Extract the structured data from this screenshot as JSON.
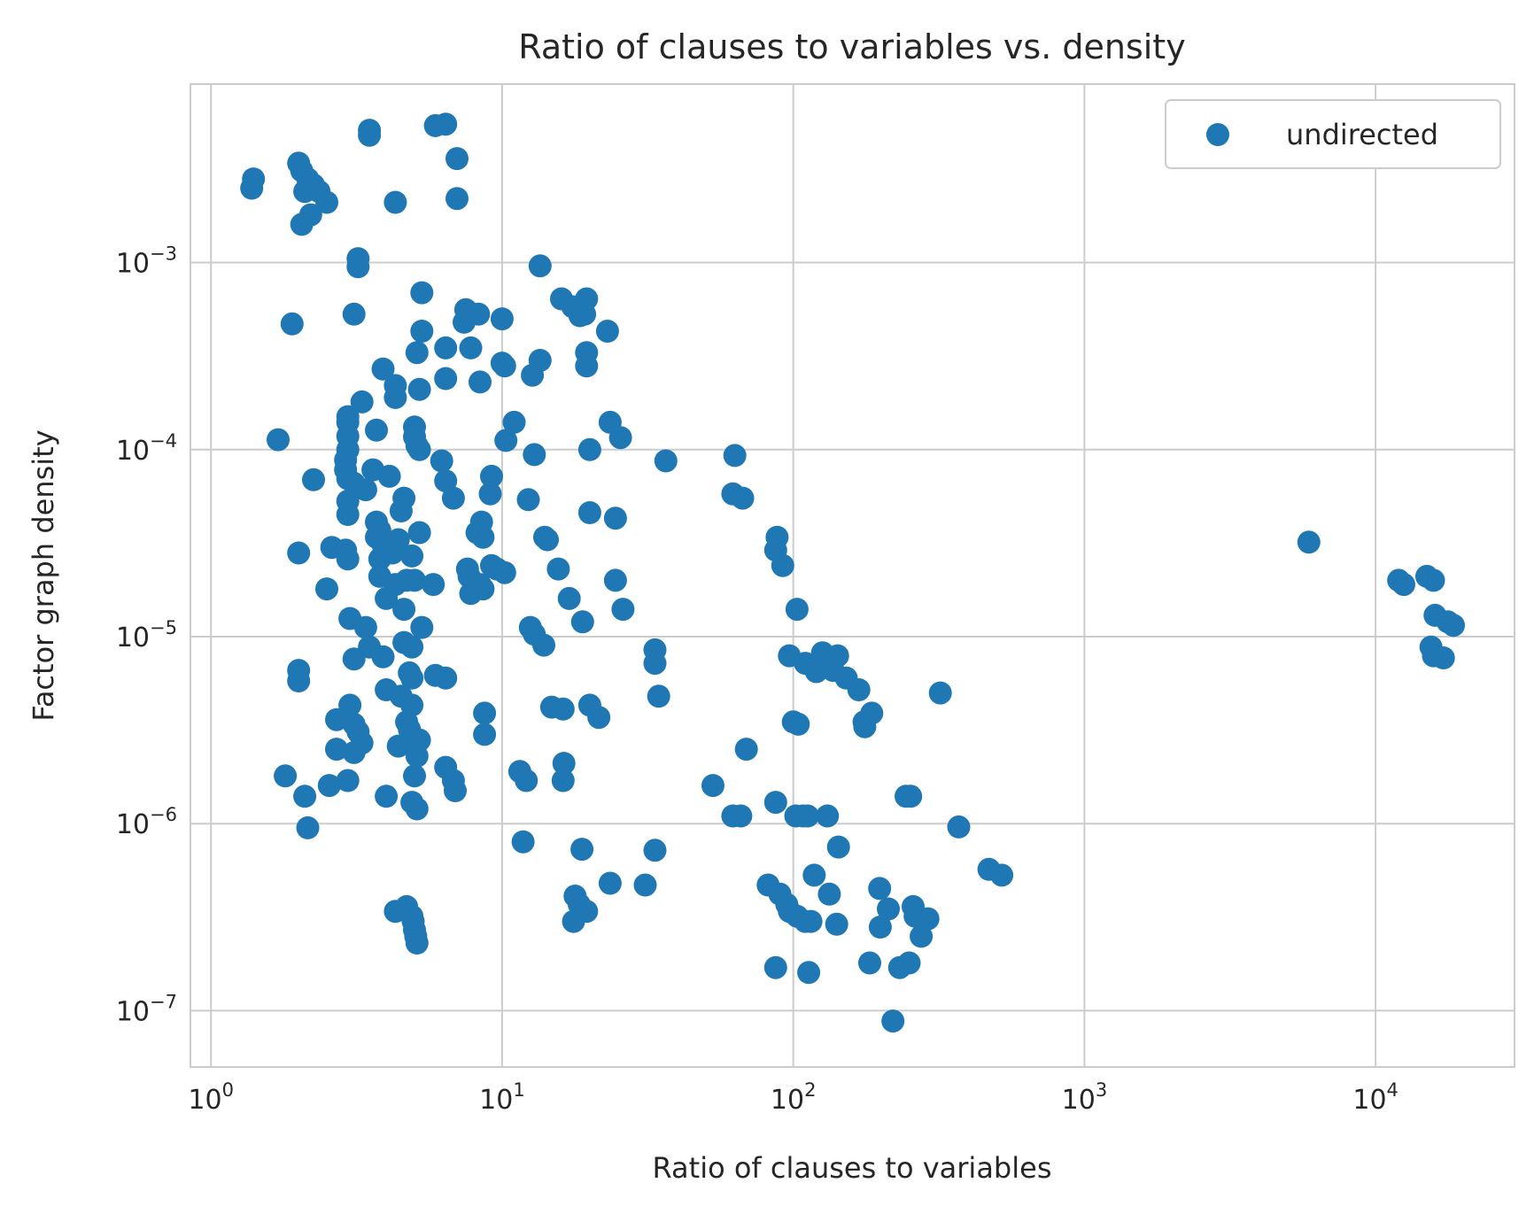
{
  "chart_data": {
    "type": "scatter",
    "title": "Ratio of clauses to variables vs. density",
    "xlabel": "Ratio of clauses to variables",
    "ylabel": "Factor graph density",
    "xscale": "log",
    "yscale": "log",
    "xlim": [
      0.85,
      30000
    ],
    "ylim": [
      5e-08,
      0.009
    ],
    "grid": true,
    "legend_position": "top-right",
    "marker_color": "#1f77b4",
    "x_ticks": [
      {
        "value": 1,
        "base": "10",
        "exp": "0"
      },
      {
        "value": 10,
        "base": "10",
        "exp": "1"
      },
      {
        "value": 100,
        "base": "10",
        "exp": "2"
      },
      {
        "value": 1000,
        "base": "10",
        "exp": "3"
      },
      {
        "value": 10000,
        "base": "10",
        "exp": "4"
      }
    ],
    "y_ticks": [
      {
        "value": 1e-07,
        "base": "10",
        "exp": "−7"
      },
      {
        "value": 1e-06,
        "base": "10",
        "exp": "−6"
      },
      {
        "value": 1e-05,
        "base": "10",
        "exp": "−5"
      },
      {
        "value": 0.0001,
        "base": "10",
        "exp": "−4"
      },
      {
        "value": 0.001,
        "base": "10",
        "exp": "−3"
      }
    ],
    "series": [
      {
        "name": "undirected",
        "points": [
          [
            1.4,
            0.0028
          ],
          [
            1.38,
            0.0025
          ],
          [
            2.0,
            0.0034
          ],
          [
            2.05,
            0.0031
          ],
          [
            2.15,
            0.0028
          ],
          [
            2.25,
            0.0026
          ],
          [
            2.1,
            0.0024
          ],
          [
            2.35,
            0.0024
          ],
          [
            2.5,
            0.0021
          ],
          [
            2.2,
            0.0018
          ],
          [
            2.05,
            0.0016
          ],
          [
            3.5,
            0.0051
          ],
          [
            3.5,
            0.0048
          ],
          [
            4.3,
            0.0021
          ],
          [
            5.9,
            0.0054
          ],
          [
            6.4,
            0.0055
          ],
          [
            7.0,
            0.0036
          ],
          [
            7.0,
            0.0022
          ],
          [
            3.2,
            0.00105
          ],
          [
            3.2,
            0.00095
          ],
          [
            13.5,
            0.00096
          ],
          [
            1.9,
            0.00047
          ],
          [
            3.1,
            0.00053
          ],
          [
            5.3,
            0.00069
          ],
          [
            5.3,
            0.00043
          ],
          [
            5.1,
            0.00033
          ],
          [
            6.4,
            0.00035
          ],
          [
            7.5,
            0.00056
          ],
          [
            7.4,
            0.00048
          ],
          [
            7.8,
            0.00035
          ],
          [
            8.3,
            0.00053
          ],
          [
            10.0,
            0.0005
          ],
          [
            16.0,
            0.00064
          ],
          [
            17.5,
            0.00058
          ],
          [
            18.5,
            0.00052
          ],
          [
            19.5,
            0.00064
          ],
          [
            19.2,
            0.00053
          ],
          [
            23.0,
            0.00043
          ],
          [
            19.5,
            0.00033
          ],
          [
            19.5,
            0.00028
          ],
          [
            3.9,
            0.00027
          ],
          [
            4.3,
            0.00022
          ],
          [
            4.3,
            0.00019
          ],
          [
            5.2,
            0.00021
          ],
          [
            6.4,
            0.00024
          ],
          [
            8.4,
            0.00023
          ],
          [
            10.2,
            0.00028
          ],
          [
            10.0,
            0.00029
          ],
          [
            12.7,
            0.00025
          ],
          [
            13.5,
            0.0003
          ],
          [
            3.3,
            0.00018
          ],
          [
            2.95,
            0.00014
          ],
          [
            2.95,
            0.00015
          ],
          [
            1.7,
            0.000113
          ],
          [
            3.7,
            0.000127
          ],
          [
            5.0,
            0.000132
          ],
          [
            5.0,
            0.000117
          ],
          [
            5.1,
            0.000105
          ],
          [
            5.2,
            0.0001
          ],
          [
            2.95,
            0.000118
          ],
          [
            2.95,
            0.0001
          ],
          [
            11.0,
            0.00014
          ],
          [
            10.3,
            0.000112
          ],
          [
            12.9,
            9.4e-05
          ],
          [
            20.0,
            0.0001
          ],
          [
            23.5,
            0.00014
          ],
          [
            25.5,
            0.000116
          ],
          [
            36.5,
            8.7e-05
          ],
          [
            63.0,
            9.3e-05
          ],
          [
            2.9,
            8.8e-05
          ],
          [
            2.9,
            7.8e-05
          ],
          [
            2.95,
            7e-05
          ],
          [
            3.1,
            6.6e-05
          ],
          [
            3.4,
            6.1e-05
          ],
          [
            3.6,
            7.8e-05
          ],
          [
            2.95,
            5.3e-05
          ],
          [
            2.95,
            4.5e-05
          ],
          [
            2.25,
            6.9e-05
          ],
          [
            4.1,
            7.2e-05
          ],
          [
            4.6,
            5.5e-05
          ],
          [
            4.5,
            4.7e-05
          ],
          [
            6.2,
            8.7e-05
          ],
          [
            6.4,
            6.8e-05
          ],
          [
            6.8,
            5.5e-05
          ],
          [
            9.2,
            7.2e-05
          ],
          [
            9.1,
            5.8e-05
          ],
          [
            12.3,
            5.4e-05
          ],
          [
            62.0,
            5.8e-05
          ],
          [
            67.0,
            5.5e-05
          ],
          [
            20.0,
            4.6e-05
          ],
          [
            24.5,
            4.3e-05
          ],
          [
            3.7,
            4.1e-05
          ],
          [
            3.8,
            3.7e-05
          ],
          [
            3.7,
            3.4e-05
          ],
          [
            3.9,
            3.1e-05
          ],
          [
            4.0,
            2.9e-05
          ],
          [
            3.8,
            2.6e-05
          ],
          [
            4.4,
            3.3e-05
          ],
          [
            4.2,
            2.8e-05
          ],
          [
            4.9,
            2.7e-05
          ],
          [
            5.2,
            3.6e-05
          ],
          [
            2.6,
            3e-05
          ],
          [
            2.9,
            2.9e-05
          ],
          [
            2.95,
            2.6e-05
          ],
          [
            2.0,
            2.8e-05
          ],
          [
            2.5,
            1.8e-05
          ],
          [
            3.8,
            2.1e-05
          ],
          [
            4.0,
            1.6e-05
          ],
          [
            4.3,
            1.9e-05
          ],
          [
            4.7,
            2e-05
          ],
          [
            5.0,
            2e-05
          ],
          [
            4.6,
            1.4e-05
          ],
          [
            5.8,
            1.9e-05
          ],
          [
            8.5,
            4.1e-05
          ],
          [
            8.2,
            3.6e-05
          ],
          [
            8.6,
            3.4e-05
          ],
          [
            7.6,
            2.3e-05
          ],
          [
            7.7,
            2.1e-05
          ],
          [
            7.8,
            1.7e-05
          ],
          [
            8.4,
            1.9e-05
          ],
          [
            8.6,
            1.8e-05
          ],
          [
            9.2,
            2.4e-05
          ],
          [
            9.6,
            2.3e-05
          ],
          [
            10.2,
            2.2e-05
          ],
          [
            14.0,
            3.4e-05
          ],
          [
            14.3,
            3.3e-05
          ],
          [
            15.6,
            2.3e-05
          ],
          [
            17.0,
            1.6e-05
          ],
          [
            18.9,
            1.2e-05
          ],
          [
            24.5,
            2e-05
          ],
          [
            26.0,
            1.4e-05
          ],
          [
            88.0,
            3.4e-05
          ],
          [
            87.0,
            2.9e-05
          ],
          [
            92.0,
            2.4e-05
          ],
          [
            103.0,
            1.4e-05
          ],
          [
            5900.0,
            3.2e-05
          ],
          [
            12000.0,
            2e-05
          ],
          [
            12500.0,
            1.9e-05
          ],
          [
            15000.0,
            2.1e-05
          ],
          [
            15800.0,
            2e-05
          ],
          [
            16000.0,
            1.3e-05
          ],
          [
            17700.0,
            1.2e-05
          ],
          [
            18500.0,
            1.15e-05
          ],
          [
            3.0,
            1.25e-05
          ],
          [
            3.4,
            1.12e-05
          ],
          [
            3.5,
            8.8e-06
          ],
          [
            3.9,
            7.8e-06
          ],
          [
            3.1,
            7.6e-06
          ],
          [
            4.6,
            9.3e-06
          ],
          [
            4.9,
            8.8e-06
          ],
          [
            5.3,
            1.12e-05
          ],
          [
            12.5,
            1.12e-05
          ],
          [
            12.9,
            1.03e-05
          ],
          [
            13.9,
            9e-06
          ],
          [
            33.5,
            8.5e-06
          ],
          [
            33.5,
            7.2e-06
          ],
          [
            97.0,
            7.9e-06
          ],
          [
            110.0,
            7.2e-06
          ],
          [
            120.0,
            6.5e-06
          ],
          [
            126.0,
            8.2e-06
          ],
          [
            137.0,
            6.6e-06
          ],
          [
            142.0,
            7.9e-06
          ],
          [
            152.0,
            6e-06
          ],
          [
            168.0,
            5.2e-06
          ],
          [
            15500.0,
            8.8e-06
          ],
          [
            15800.0,
            7.9e-06
          ],
          [
            17100.0,
            7.7e-06
          ],
          [
            2.0,
            6.6e-06
          ],
          [
            2.0,
            5.8e-06
          ],
          [
            4.8,
            6.4e-06
          ],
          [
            4.9,
            6e-06
          ],
          [
            5.9,
            6.2e-06
          ],
          [
            6.4,
            6e-06
          ],
          [
            4.0,
            5.2e-06
          ],
          [
            4.5,
            4.8e-06
          ],
          [
            4.9,
            4.3e-06
          ],
          [
            3.0,
            4.3e-06
          ],
          [
            2.7,
            3.6e-06
          ],
          [
            3.1,
            3.4e-06
          ],
          [
            3.2,
            3.1e-06
          ],
          [
            3.3,
            2.7e-06
          ],
          [
            2.7,
            2.5e-06
          ],
          [
            3.1,
            2.4e-06
          ],
          [
            4.7,
            3.5e-06
          ],
          [
            4.8,
            3.2e-06
          ],
          [
            4.9,
            2.9e-06
          ],
          [
            5.2,
            2.8e-06
          ],
          [
            5.1,
            2.3e-06
          ],
          [
            4.4,
            2.6e-06
          ],
          [
            8.7,
            3.9e-06
          ],
          [
            8.7,
            3e-06
          ],
          [
            14.8,
            4.2e-06
          ],
          [
            16.2,
            4.1e-06
          ],
          [
            20.0,
            4.3e-06
          ],
          [
            21.5,
            3.7e-06
          ],
          [
            34.5,
            4.8e-06
          ],
          [
            69.0,
            2.5e-06
          ],
          [
            100.0,
            3.5e-06
          ],
          [
            104.0,
            3.4e-06
          ],
          [
            175.0,
            3.5e-06
          ],
          [
            176.0,
            3.3e-06
          ],
          [
            186.0,
            3.9e-06
          ],
          [
            320.0,
            5e-06
          ],
          [
            1.8,
            1.8e-06
          ],
          [
            2.1,
            1.4e-06
          ],
          [
            2.55,
            1.6e-06
          ],
          [
            2.95,
            1.7e-06
          ],
          [
            4.0,
            1.4e-06
          ],
          [
            4.9,
            1.3e-06
          ],
          [
            5.0,
            1.8e-06
          ],
          [
            5.1,
            1.2e-06
          ],
          [
            6.4,
            2e-06
          ],
          [
            6.8,
            1.7e-06
          ],
          [
            6.9,
            1.5e-06
          ],
          [
            11.5,
            1.9e-06
          ],
          [
            12.1,
            1.7e-06
          ],
          [
            16.3,
            2.1e-06
          ],
          [
            16.2,
            1.7e-06
          ],
          [
            53.0,
            1.6e-06
          ],
          [
            2.15,
            9.5e-07
          ],
          [
            11.8,
            8e-07
          ],
          [
            18.8,
            7.3e-07
          ],
          [
            33.5,
            7.2e-07
          ],
          [
            62.0,
            1.1e-06
          ],
          [
            66.0,
            1.1e-06
          ],
          [
            87.0,
            1.3e-06
          ],
          [
            102.0,
            1.1e-06
          ],
          [
            108.0,
            1.1e-06
          ],
          [
            112.0,
            1.1e-06
          ],
          [
            131.0,
            1.1e-06
          ],
          [
            143.0,
            7.5e-07
          ],
          [
            244.0,
            1.4e-06
          ],
          [
            253.0,
            1.4e-06
          ],
          [
            370.0,
            9.6e-07
          ],
          [
            470.0,
            5.7e-07
          ],
          [
            520.0,
            5.3e-07
          ],
          [
            23.5,
            4.8e-07
          ],
          [
            31.0,
            4.7e-07
          ],
          [
            17.8,
            4.1e-07
          ],
          [
            18.4,
            3.7e-07
          ],
          [
            19.5,
            3.4e-07
          ],
          [
            17.6,
            3e-07
          ],
          [
            4.3,
            3.4e-07
          ],
          [
            4.7,
            3.6e-07
          ],
          [
            4.9,
            3.2e-07
          ],
          [
            4.95,
            3e-07
          ],
          [
            5.0,
            2.7e-07
          ],
          [
            5.05,
            2.5e-07
          ],
          [
            5.1,
            2.3e-07
          ],
          [
            82.0,
            4.7e-07
          ],
          [
            90.0,
            4.2e-07
          ],
          [
            95.0,
            3.7e-07
          ],
          [
            97.0,
            3.4e-07
          ],
          [
            103.0,
            3.2e-07
          ],
          [
            110.0,
            3e-07
          ],
          [
            115.0,
            3e-07
          ],
          [
            118.0,
            5.3e-07
          ],
          [
            133.0,
            4.2e-07
          ],
          [
            141.0,
            2.9e-07
          ],
          [
            198.0,
            4.5e-07
          ],
          [
            199.0,
            2.8e-07
          ],
          [
            212.0,
            3.5e-07
          ],
          [
            258.0,
            3.6e-07
          ],
          [
            262.0,
            3.2e-07
          ],
          [
            275.0,
            2.5e-07
          ],
          [
            290.0,
            3.1e-07
          ],
          [
            87.0,
            1.7e-07
          ],
          [
            113.0,
            1.6e-07
          ],
          [
            183.0,
            1.8e-07
          ],
          [
            232.0,
            1.7e-07
          ],
          [
            250.0,
            1.8e-07
          ],
          [
            220.0,
            8.8e-08
          ]
        ]
      }
    ]
  }
}
